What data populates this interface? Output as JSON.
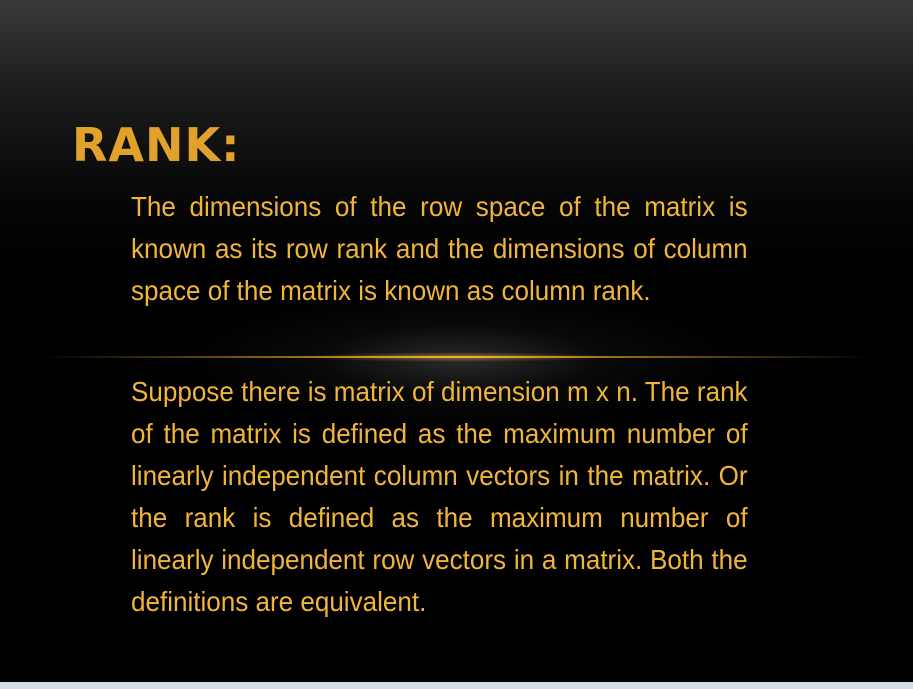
{
  "slide": {
    "title": "RANK:",
    "paragraphs": [
      "The dimensions of the row space of the matrix is known as its row rank and the dimensions of column space of the matrix is known as column rank.",
      "Suppose there is matrix of dimension m x n. The rank of the matrix is defined as the maximum number of linearly independent column vectors in the matrix. Or the rank is defined as the maximum number of linearly independent row vectors in a matrix. Both the definitions are equivalent."
    ]
  },
  "colors": {
    "title": "#e0a22a",
    "body_text": "#f1b53a",
    "background": "#000000",
    "divider": "#f0b030"
  }
}
